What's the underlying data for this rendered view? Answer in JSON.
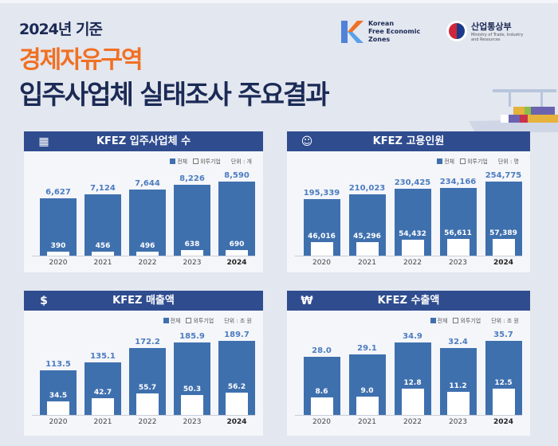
{
  "header": {
    "subtitle": "2024년 기준",
    "title_orange": "경제자유구역",
    "title_main": "입주사업체 실태조사 주요결과"
  },
  "logos": {
    "kfez": [
      "Korean",
      "Free Economic",
      "Zones"
    ],
    "ministry_kr": "산업통상부",
    "ministry_en": [
      "Ministry of Trade, Industry",
      "and Resources"
    ]
  },
  "colors": {
    "navy": "#2f4c8f",
    "bar": "#3f70ae",
    "orange": "#f07023"
  },
  "chart_data": [
    {
      "type": "bar",
      "title": "KFEZ 입주사업체 수",
      "icon": "building-icon",
      "unit": "단위 : 개",
      "legend": [
        "전체",
        "외투기업"
      ],
      "categories": [
        "2020",
        "2021",
        "2022",
        "2023",
        "2024"
      ],
      "series": [
        {
          "name": "전체",
          "values": [
            6627,
            7124,
            7644,
            8226,
            8590
          ],
          "labels": [
            "6,627",
            "7,124",
            "7,644",
            "8,226",
            "8,590"
          ]
        },
        {
          "name": "외투기업",
          "values": [
            390,
            456,
            496,
            638,
            690
          ],
          "labels": [
            "390",
            "456",
            "496",
            "638",
            "690"
          ]
        }
      ]
    },
    {
      "type": "bar",
      "title": "KFEZ 고용인원",
      "icon": "people-icon",
      "unit": "단위 : 명",
      "legend": [
        "전체",
        "외투기업"
      ],
      "categories": [
        "2020",
        "2021",
        "2022",
        "2023",
        "2024"
      ],
      "series": [
        {
          "name": "전체",
          "values": [
            195339,
            210023,
            230425,
            234166,
            254775
          ],
          "labels": [
            "195,339",
            "210,023",
            "230,425",
            "234,166",
            "254,775"
          ]
        },
        {
          "name": "외투기업",
          "values": [
            46016,
            45296,
            54432,
            56611,
            57389
          ],
          "labels": [
            "46,016",
            "45,296",
            "54,432",
            "56,611",
            "57,389"
          ]
        }
      ]
    },
    {
      "type": "bar",
      "title": "KFEZ 매출액",
      "icon": "money-icon",
      "unit": "단위 : 조 원",
      "legend": [
        "전체",
        "외투기업"
      ],
      "categories": [
        "2020",
        "2021",
        "2022",
        "2023",
        "2024"
      ],
      "series": [
        {
          "name": "전체",
          "values": [
            113.5,
            135.1,
            172.2,
            185.9,
            189.7
          ],
          "labels": [
            "113.5",
            "135.1",
            "172.2",
            "185.9",
            "189.7"
          ]
        },
        {
          "name": "외투기업",
          "values": [
            34.5,
            42.7,
            55.7,
            50.3,
            56.2
          ],
          "labels": [
            "34.5",
            "42.7",
            "55.7",
            "50.3",
            "56.2"
          ]
        }
      ]
    },
    {
      "type": "bar",
      "title": "KFEZ 수출액",
      "icon": "export-coin-icon",
      "unit": "단위 : 조 원",
      "legend": [
        "전체",
        "외투기업"
      ],
      "categories": [
        "2020",
        "2021",
        "2022",
        "2023",
        "2024"
      ],
      "series": [
        {
          "name": "전체",
          "values": [
            28.0,
            29.1,
            34.9,
            32.4,
            35.7
          ],
          "labels": [
            "28.0",
            "29.1",
            "34.9",
            "32.4",
            "35.7"
          ]
        },
        {
          "name": "외투기업",
          "values": [
            8.6,
            9.0,
            12.8,
            11.2,
            12.5
          ],
          "labels": [
            "8.6",
            "9.0",
            "12.8",
            "11.2",
            "12.5"
          ]
        }
      ]
    }
  ]
}
